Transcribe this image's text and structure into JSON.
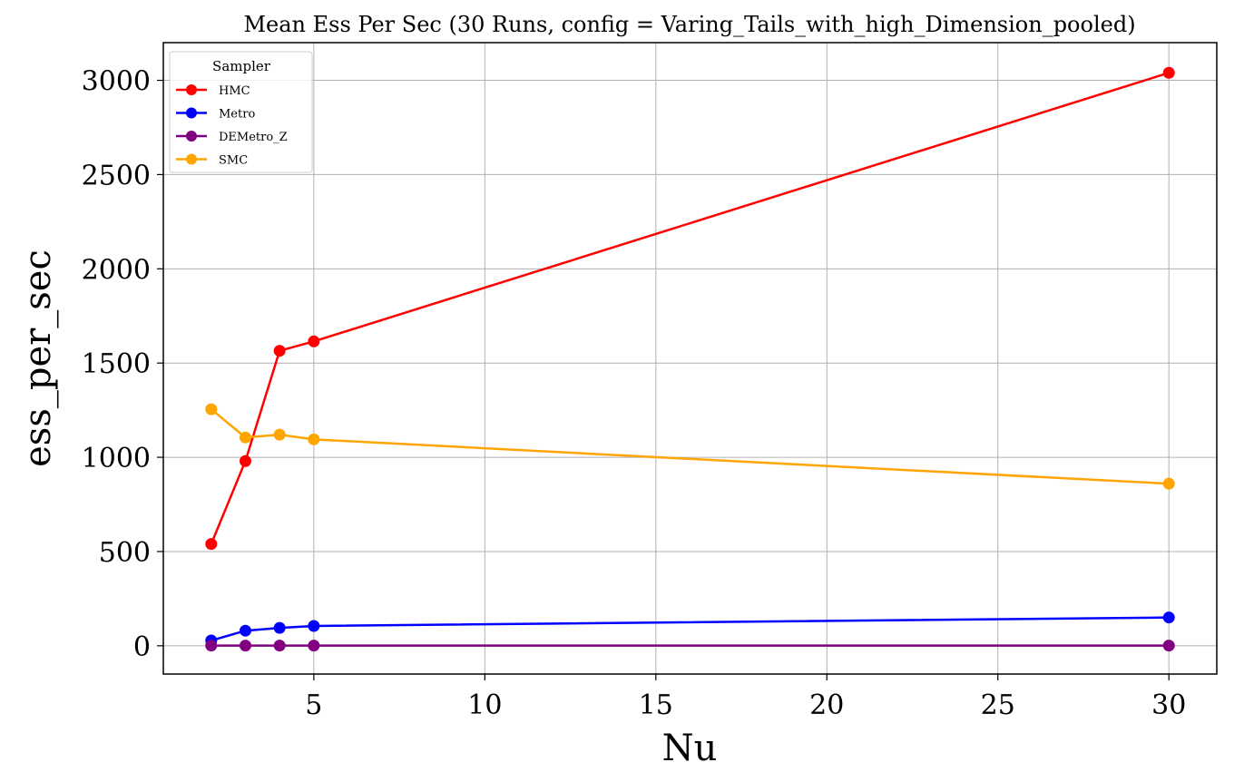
{
  "chart_data": {
    "type": "line",
    "title": "Mean Ess Per Sec (30 Runs, config = Varing_Tails_with_high_Dimension_pooled)",
    "xlabel": "Nu",
    "ylabel": "ess_per_sec",
    "x": [
      2,
      3,
      4,
      5,
      30
    ],
    "xlim": [
      0.6,
      31.4
    ],
    "ylim": [
      -150,
      3200
    ],
    "xticks": [
      5,
      10,
      15,
      20,
      25,
      30
    ],
    "yticks": [
      0,
      500,
      1000,
      1500,
      2000,
      2500,
      3000
    ],
    "grid": true,
    "legend": {
      "title": "Sampler",
      "position": "top-left"
    },
    "series": [
      {
        "name": "HMC",
        "color": "#ff0000",
        "values": [
          540,
          980,
          1565,
          1615,
          3040
        ]
      },
      {
        "name": "Metro",
        "color": "#0000ff",
        "values": [
          28,
          80,
          95,
          105,
          150
        ]
      },
      {
        "name": "DEMetro_Z",
        "color": "#800080",
        "values": [
          1,
          1,
          1,
          1,
          1
        ]
      },
      {
        "name": "SMC",
        "color": "#ffa500",
        "values": [
          1255,
          1105,
          1120,
          1095,
          860
        ]
      }
    ]
  }
}
